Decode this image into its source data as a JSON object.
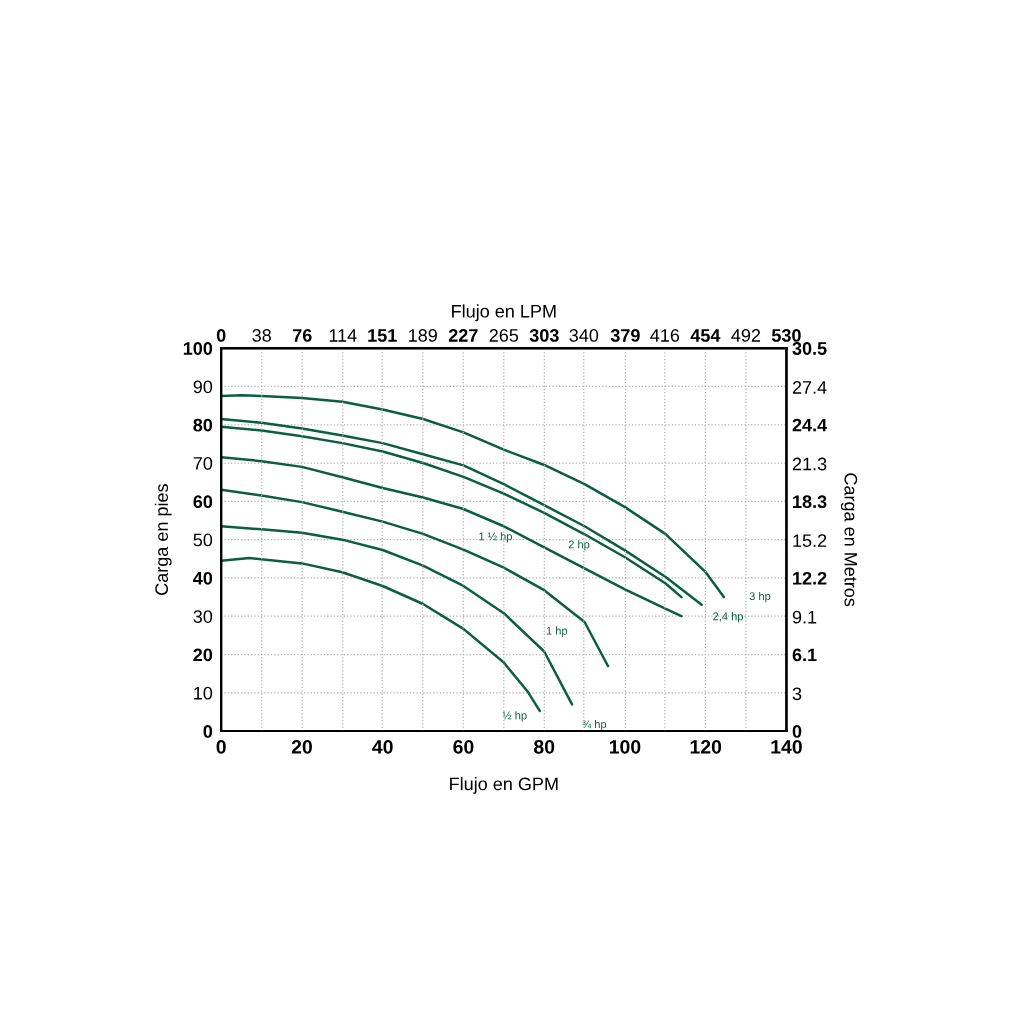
{
  "chart_data": {
    "type": "line",
    "xlabel": "Flujo en GPM",
    "x2label": "Flujo en LPM",
    "ylabel": "Carga en pies",
    "y2label": "Carga en Metros",
    "xlim": [
      0,
      140
    ],
    "xticks": [
      0,
      20,
      40,
      60,
      80,
      100,
      120,
      140
    ],
    "ylim": [
      0,
      100
    ],
    "yticks": [
      0,
      10,
      20,
      30,
      40,
      50,
      60,
      70,
      80,
      90,
      100
    ],
    "x2lim": [
      0,
      530
    ],
    "x2ticks": [
      0,
      38,
      76,
      114,
      151,
      189,
      227,
      265,
      303,
      340,
      379,
      416,
      454,
      492,
      530
    ],
    "y2lim": [
      0,
      30.5
    ],
    "y2ticks": [
      0,
      3,
      6.1,
      9.1,
      12.2,
      15.2,
      18.3,
      21.3,
      24.4,
      27.4,
      30.5
    ],
    "grid": true,
    "marker": "none",
    "series": [
      {
        "name": "3 hp",
        "color": "#0b5e40",
        "x": [
          0,
          5,
          10,
          20,
          30,
          40,
          50,
          60,
          70,
          80,
          90,
          100,
          110,
          120,
          124.5
        ],
        "values": [
          87.5,
          87.7,
          87.5,
          87,
          86,
          84,
          81.5,
          78,
          73.5,
          69.5,
          64.5,
          58.5,
          51.5,
          41.5,
          35
        ]
      },
      {
        "name": "2,4 hp",
        "color": "#0b5e40",
        "x": [
          0,
          10,
          20,
          30,
          40,
          50,
          60,
          70,
          80,
          90,
          100,
          110,
          119
        ],
        "values": [
          81.5,
          80.5,
          79,
          77.2,
          75.2,
          72.3,
          69.4,
          64.5,
          59,
          53.5,
          47.2,
          40.3,
          33
        ]
      },
      {
        "name": "2 hp",
        "color": "#0b5e40",
        "x": [
          0,
          10,
          20,
          30,
          40,
          50,
          60,
          70,
          80,
          90,
          100,
          110,
          114
        ],
        "values": [
          79.5,
          78.5,
          77,
          75.2,
          73,
          70,
          66.4,
          62,
          57,
          51.4,
          45.4,
          38.6,
          35
        ]
      },
      {
        "name": "1 ½ hp",
        "color": "#0b5e40",
        "x": [
          0,
          10,
          20,
          30,
          40,
          50,
          60,
          70,
          80,
          90,
          100,
          110,
          114
        ],
        "values": [
          71.5,
          70.5,
          69,
          66.3,
          63.5,
          61,
          58,
          53.5,
          48,
          42.5,
          37,
          32,
          30
        ]
      },
      {
        "name": "1 hp",
        "color": "#0b5e40",
        "x": [
          0,
          10,
          20,
          30,
          40,
          50,
          60,
          70,
          80,
          90,
          95.8
        ],
        "values": [
          63,
          61.5,
          59.8,
          57.3,
          54.7,
          51.5,
          47.4,
          42.7,
          36.8,
          28.5,
          17
        ]
      },
      {
        "name": "¾ hp",
        "color": "#0b5e40",
        "x": [
          0,
          10,
          20,
          30,
          40,
          50,
          60,
          70,
          80,
          86.9
        ],
        "values": [
          53.5,
          52.7,
          51.8,
          50,
          47.3,
          43.2,
          37.9,
          30.8,
          20.8,
          7
        ]
      },
      {
        "name": "½ hp",
        "color": "#0b5e40",
        "x": [
          0,
          7,
          20,
          30,
          40,
          50,
          60,
          70,
          76,
          78.9
        ],
        "values": [
          44.5,
          45.2,
          43.8,
          41.5,
          37.9,
          33.2,
          26.7,
          17.9,
          10.2,
          5.3
        ]
      }
    ]
  }
}
